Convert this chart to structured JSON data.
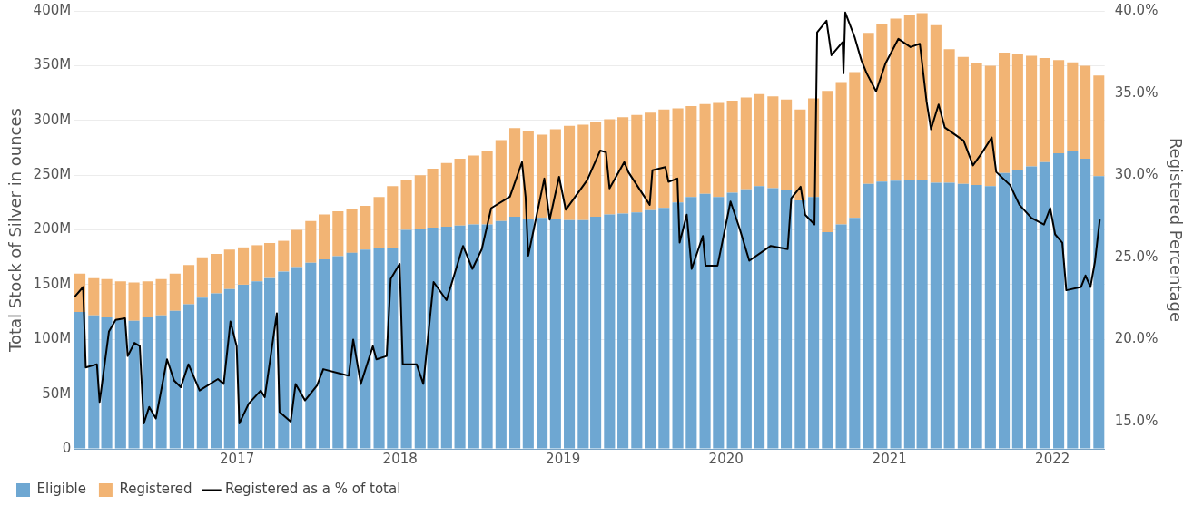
{
  "chart_data": {
    "type": "bar",
    "stacked": true,
    "ylabel": "Total Stock of Silver in ounces",
    "y2label": "Registered Percentage",
    "grid": "y",
    "legend": "bottom",
    "xlim": [
      "2016-01-01",
      "2022-04-28"
    ],
    "xticks": [
      "2017",
      "2018",
      "2019",
      "2020",
      "2021",
      "2022"
    ],
    "ylim": [
      0,
      400
    ],
    "yticks": [
      0,
      {
        "value": 50,
        "label": "50M"
      },
      {
        "value": 100,
        "label": "100M"
      },
      {
        "value": 150,
        "label": "150M"
      },
      {
        "value": 200,
        "label": "200M"
      },
      {
        "value": 250,
        "label": "250M"
      },
      {
        "value": 300,
        "label": "300M"
      },
      {
        "value": 350,
        "label": "350M"
      },
      {
        "value": 400,
        "label": "400M"
      }
    ],
    "y2lim": [
      13.35,
      40
    ],
    "y2ticks": [
      {
        "value": 15,
        "label": "15.0%"
      },
      {
        "value": 20,
        "label": "20.0%"
      },
      {
        "value": 25,
        "label": "25.0%"
      },
      {
        "value": 30,
        "label": "30.0%"
      },
      {
        "value": 35,
        "label": "35.0%"
      },
      {
        "value": 40,
        "label": "40.0%"
      }
    ],
    "x": [
      "2016-01-15",
      "2016-02-15",
      "2016-03-15",
      "2016-04-15",
      "2016-05-15",
      "2016-06-15",
      "2016-07-15",
      "2016-08-15",
      "2016-09-15",
      "2016-10-15",
      "2016-11-15",
      "2016-12-15",
      "2017-01-15",
      "2017-02-15",
      "2017-03-15",
      "2017-04-15",
      "2017-05-15",
      "2017-06-15",
      "2017-07-15",
      "2017-08-15",
      "2017-09-15",
      "2017-10-15",
      "2017-11-15",
      "2017-12-15",
      "2018-01-15",
      "2018-02-15",
      "2018-03-15",
      "2018-04-15",
      "2018-05-15",
      "2018-06-15",
      "2018-07-15",
      "2018-08-15",
      "2018-09-15",
      "2018-10-15",
      "2018-11-15",
      "2018-12-15",
      "2019-01-15",
      "2019-02-15",
      "2019-03-15",
      "2019-04-15",
      "2019-05-15",
      "2019-06-15",
      "2019-07-15",
      "2019-08-15",
      "2019-09-15",
      "2019-10-15",
      "2019-11-15",
      "2019-12-15",
      "2020-01-15",
      "2020-02-15",
      "2020-03-15",
      "2020-04-15",
      "2020-05-15",
      "2020-06-15",
      "2020-07-15",
      "2020-08-15",
      "2020-09-15",
      "2020-10-15",
      "2020-11-15",
      "2020-12-15",
      "2021-01-15",
      "2021-02-15",
      "2021-03-15",
      "2021-04-15",
      "2021-05-15",
      "2021-06-15",
      "2021-07-15",
      "2021-08-15",
      "2021-09-15",
      "2021-10-15",
      "2021-11-15",
      "2021-12-15",
      "2022-01-15",
      "2022-02-15",
      "2022-03-15",
      "2022-04-15"
    ],
    "series": [
      {
        "name": "Eligible",
        "color": "#6ea7d2",
        "values": [
          125,
          122,
          120,
          118,
          117,
          120,
          122,
          126,
          132,
          138,
          142,
          146,
          150,
          153,
          156,
          162,
          166,
          170,
          173,
          176,
          179,
          182,
          183,
          183,
          200,
          201,
          202,
          203,
          204,
          205,
          205,
          208,
          212,
          210,
          211,
          210,
          209,
          209,
          212,
          214,
          215,
          216,
          218,
          220,
          225,
          230,
          233,
          230,
          234,
          237,
          240,
          238,
          236,
          227,
          230,
          198,
          205,
          211,
          242,
          244,
          245,
          246,
          246,
          243,
          243,
          242,
          241,
          240,
          252,
          255,
          258,
          262,
          270,
          272,
          265,
          249
        ]
      },
      {
        "name": "Registered",
        "color": "#f2b474",
        "values": [
          35,
          34,
          35,
          35,
          35,
          33,
          33,
          34,
          36,
          37,
          36,
          36,
          34,
          33,
          32,
          28,
          34,
          38,
          41,
          41,
          40,
          40,
          47,
          57,
          46,
          49,
          54,
          58,
          61,
          63,
          67,
          74,
          81,
          80,
          76,
          82,
          86,
          87,
          87,
          87,
          88,
          89,
          89,
          90,
          86,
          83,
          82,
          86,
          84,
          84,
          84,
          84,
          83,
          83,
          90,
          129,
          130,
          133,
          138,
          144,
          148,
          150,
          152,
          144,
          122,
          116,
          111,
          110,
          110,
          106,
          101,
          95,
          85,
          81,
          85,
          92
        ]
      },
      {
        "name": "Registered as a % of total",
        "type": "line",
        "axis": "y2",
        "color": "#000000",
        "x": [
          "2016-01-03",
          "2016-01-22",
          "2016-01-28",
          "2016-02-22",
          "2016-02-28",
          "2016-03-20",
          "2016-04-04",
          "2016-04-25",
          "2016-05-01",
          "2016-05-16",
          "2016-05-28",
          "2016-06-06",
          "2016-06-18",
          "2016-07-03",
          "2016-07-28",
          "2016-08-13",
          "2016-08-28",
          "2016-09-14",
          "2016-10-09",
          "2016-11-19",
          "2016-12-02",
          "2016-12-17",
          "2016-12-31",
          "2017-01-06",
          "2017-01-27",
          "2017-02-23",
          "2017-03-04",
          "2017-03-31",
          "2017-04-06",
          "2017-05-01",
          "2017-05-12",
          "2017-06-02",
          "2017-06-29",
          "2017-07-13",
          "2017-08-24",
          "2017-09-08",
          "2017-09-18",
          "2017-10-05",
          "2017-11-01",
          "2017-11-09",
          "2017-12-02",
          "2017-12-11",
          "2017-12-31",
          "2018-01-07",
          "2018-02-07",
          "2018-02-22",
          "2018-03-17",
          "2018-04-15",
          "2018-05-22",
          "2018-06-12",
          "2018-07-03",
          "2018-07-24",
          "2018-09-04",
          "2018-10-01",
          "2018-10-09",
          "2018-10-15",
          "2018-11-20",
          "2018-12-02",
          "2018-12-23",
          "2019-01-07",
          "2019-02-24",
          "2019-03-25",
          "2019-04-07",
          "2019-04-15",
          "2019-05-18",
          "2019-05-27",
          "2019-07-14",
          "2019-07-20",
          "2019-08-18",
          "2019-08-25",
          "2019-09-14",
          "2019-09-19",
          "2019-10-05",
          "2019-10-16",
          "2019-11-10",
          "2019-11-16",
          "2019-12-13",
          "2020-01-11",
          "2020-02-01",
          "2020-02-22",
          "2020-04-10",
          "2020-05-18",
          "2020-05-26",
          "2020-06-16",
          "2020-06-26",
          "2020-07-17",
          "2020-07-23",
          "2020-08-13",
          "2020-08-24",
          "2020-09-18",
          "2020-09-20",
          "2020-09-24",
          "2020-10-15",
          "2020-10-30",
          "2020-11-11",
          "2020-12-02",
          "2020-12-23",
          "2021-01-21",
          "2021-02-17",
          "2021-03-10",
          "2021-03-25",
          "2021-04-04",
          "2021-04-21",
          "2021-05-05",
          "2021-06-16",
          "2021-07-07",
          "2021-07-28",
          "2021-08-18",
          "2021-08-28",
          "2021-09-28",
          "2021-10-19",
          "2021-11-15",
          "2021-12-13",
          "2021-12-27",
          "2022-01-07",
          "2022-01-23",
          "2022-02-01",
          "2022-03-06",
          "2022-03-16",
          "2022-03-27",
          "2022-04-06",
          "2022-04-17"
        ],
        "values": [
          22.6,
          23.2,
          18.3,
          18.5,
          16.2,
          20.5,
          21.2,
          21.3,
          19.0,
          19.8,
          19.6,
          14.9,
          15.9,
          15.2,
          18.8,
          17.5,
          17.1,
          18.5,
          16.9,
          17.6,
          17.3,
          21.1,
          19.6,
          14.9,
          16.1,
          16.9,
          16.5,
          21.6,
          15.6,
          15.0,
          17.3,
          16.3,
          17.2,
          18.2,
          17.9,
          17.8,
          20.0,
          17.3,
          19.6,
          18.8,
          19.0,
          23.7,
          24.6,
          18.5,
          18.5,
          17.3,
          23.5,
          22.4,
          25.7,
          24.3,
          25.5,
          28.0,
          28.7,
          30.8,
          28.7,
          25.1,
          29.8,
          27.3,
          29.9,
          27.9,
          29.7,
          31.5,
          31.4,
          29.2,
          30.8,
          30.2,
          28.2,
          30.3,
          30.5,
          29.6,
          29.8,
          25.9,
          27.6,
          24.3,
          26.3,
          24.5,
          24.5,
          28.4,
          26.7,
          24.8,
          25.7,
          25.5,
          28.6,
          29.3,
          27.6,
          27.0,
          38.7,
          39.4,
          37.3,
          38.1,
          36.2,
          39.9,
          38.4,
          37.0,
          36.2,
          35.1,
          36.8,
          38.3,
          37.8,
          38.0,
          34.5,
          32.8,
          34.3,
          32.9,
          32.1,
          30.6,
          31.4,
          32.3,
          30.2,
          29.4,
          28.2,
          27.4,
          27.0,
          28.0,
          26.4,
          25.9,
          23.0,
          23.2,
          23.9,
          23.2,
          24.7,
          27.3
        ]
      }
    ]
  }
}
